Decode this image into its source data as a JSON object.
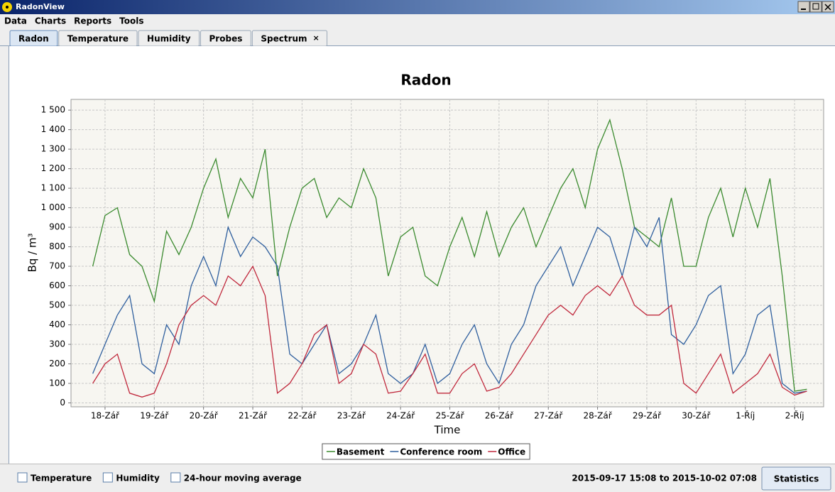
{
  "window": {
    "title": "RadonView"
  },
  "menu": [
    "Data",
    "Charts",
    "Reports",
    "Tools"
  ],
  "tabs": [
    {
      "label": "Radon",
      "active": true
    },
    {
      "label": "Temperature",
      "active": false
    },
    {
      "label": "Humidity",
      "active": false
    },
    {
      "label": "Probes",
      "active": false
    },
    {
      "label": "Spectrum",
      "active": false,
      "close": "×"
    }
  ],
  "chart_data": {
    "type": "line",
    "title": "Radon",
    "x_label": "Time",
    "y_label": "Bq / m³",
    "x": [
      "2015-09-17T18:00",
      "2015-09-18T00:00",
      "2015-09-18T06:00",
      "2015-09-18T12:00",
      "2015-09-18T18:00",
      "2015-09-19T00:00",
      "2015-09-19T06:00",
      "2015-09-19T12:00",
      "2015-09-19T18:00",
      "2015-09-20T00:00",
      "2015-09-20T06:00",
      "2015-09-20T12:00",
      "2015-09-20T18:00",
      "2015-09-21T00:00",
      "2015-09-21T06:00",
      "2015-09-21T12:00",
      "2015-09-21T18:00",
      "2015-09-22T00:00",
      "2015-09-22T06:00",
      "2015-09-22T12:00",
      "2015-09-22T18:00",
      "2015-09-23T00:00",
      "2015-09-23T06:00",
      "2015-09-23T12:00",
      "2015-09-23T18:00",
      "2015-09-24T00:00",
      "2015-09-24T06:00",
      "2015-09-24T12:00",
      "2015-09-24T18:00",
      "2015-09-25T00:00",
      "2015-09-25T06:00",
      "2015-09-25T12:00",
      "2015-09-25T18:00",
      "2015-09-26T00:00",
      "2015-09-26T06:00",
      "2015-09-26T12:00",
      "2015-09-26T18:00",
      "2015-09-27T00:00",
      "2015-09-27T06:00",
      "2015-09-27T12:00",
      "2015-09-27T18:00",
      "2015-09-28T00:00",
      "2015-09-28T06:00",
      "2015-09-28T12:00",
      "2015-09-28T18:00",
      "2015-09-29T00:00",
      "2015-09-29T06:00",
      "2015-09-29T12:00",
      "2015-09-29T18:00",
      "2015-09-30T00:00",
      "2015-09-30T06:00",
      "2015-09-30T12:00",
      "2015-09-30T18:00",
      "2015-10-01T00:00",
      "2015-10-01T06:00",
      "2015-10-01T12:00",
      "2015-10-01T18:00",
      "2015-10-02T00:00",
      "2015-10-02T06:00"
    ],
    "xlim": [
      "2015-09-17T07:25",
      "2015-10-02T14:10"
    ],
    "xticks": [
      {
        "value": "2015-09-18T00:00",
        "label": "18-Zář"
      },
      {
        "value": "2015-09-19T00:00",
        "label": "19-Zář"
      },
      {
        "value": "2015-09-20T00:00",
        "label": "20-Zář"
      },
      {
        "value": "2015-09-21T00:00",
        "label": "21-Zář"
      },
      {
        "value": "2015-09-22T00:00",
        "label": "22-Zář"
      },
      {
        "value": "2015-09-23T00:00",
        "label": "23-Zář"
      },
      {
        "value": "2015-09-24T00:00",
        "label": "24-Zář"
      },
      {
        "value": "2015-09-25T00:00",
        "label": "25-Zář"
      },
      {
        "value": "2015-09-26T00:00",
        "label": "26-Zář"
      },
      {
        "value": "2015-09-27T00:00",
        "label": "27-Zář"
      },
      {
        "value": "2015-09-28T00:00",
        "label": "28-Zář"
      },
      {
        "value": "2015-09-29T00:00",
        "label": "29-Zář"
      },
      {
        "value": "2015-09-30T00:00",
        "label": "30-Zář"
      },
      {
        "value": "2015-10-01T00:00",
        "label": "1-Říj"
      },
      {
        "value": "2015-10-02T00:00",
        "label": "2-Říj"
      }
    ],
    "ylim": [
      -20,
      1555
    ],
    "yticks": [
      0,
      100,
      200,
      300,
      400,
      500,
      600,
      700,
      800,
      900,
      {
        "value": 1000,
        "label": "1 000"
      },
      {
        "value": 1100,
        "label": "1 100"
      },
      {
        "value": 1200,
        "label": "1 200"
      },
      {
        "value": 1300,
        "label": "1 300"
      },
      {
        "value": 1400,
        "label": "1 400"
      },
      {
        "value": 1500,
        "label": "1 500"
      }
    ],
    "grid": true,
    "legend": "bottom",
    "series": [
      {
        "name": "Basement",
        "color": "#3a8a2e",
        "values": [
          700,
          960,
          1000,
          760,
          700,
          520,
          880,
          760,
          900,
          1100,
          1250,
          950,
          1150,
          1050,
          1300,
          650,
          900,
          1100,
          1150,
          950,
          1050,
          1000,
          1200,
          1050,
          650,
          850,
          900,
          650,
          600,
          800,
          950,
          750,
          980,
          750,
          900,
          1000,
          800,
          950,
          1100,
          1200,
          1000,
          1300,
          1450,
          1200,
          900,
          850,
          800,
          1050,
          700,
          700,
          950,
          1100,
          850,
          1100,
          900,
          1150,
          650,
          60,
          70
        ]
      },
      {
        "name": "Conference room",
        "color": "#2f5f9e",
        "values": [
          150,
          300,
          450,
          550,
          200,
          150,
          400,
          300,
          600,
          750,
          600,
          900,
          750,
          850,
          800,
          700,
          250,
          200,
          300,
          400,
          150,
          200,
          300,
          450,
          150,
          100,
          150,
          300,
          100,
          150,
          300,
          400,
          200,
          100,
          300,
          400,
          600,
          700,
          800,
          600,
          750,
          900,
          850,
          650,
          900,
          800,
          950,
          350,
          300,
          400,
          550,
          600,
          150,
          250,
          450,
          500,
          100,
          50,
          60
        ]
      },
      {
        "name": "Office",
        "color": "#c0283c",
        "values": [
          100,
          200,
          250,
          50,
          30,
          50,
          200,
          400,
          500,
          550,
          500,
          650,
          600,
          700,
          550,
          50,
          100,
          200,
          350,
          400,
          100,
          150,
          300,
          250,
          50,
          60,
          150,
          250,
          50,
          50,
          150,
          200,
          60,
          80,
          150,
          250,
          350,
          450,
          500,
          450,
          550,
          600,
          550,
          650,
          500,
          450,
          450,
          500,
          100,
          50,
          150,
          250,
          50,
          100,
          150,
          250,
          80,
          40,
          60
        ]
      }
    ]
  },
  "options": [
    "Temperature",
    "Humidity",
    "24-hour moving average"
  ],
  "status": {
    "range": "2015-09-17 15:08 to 2015-10-02 07:08",
    "button": "Statistics"
  }
}
